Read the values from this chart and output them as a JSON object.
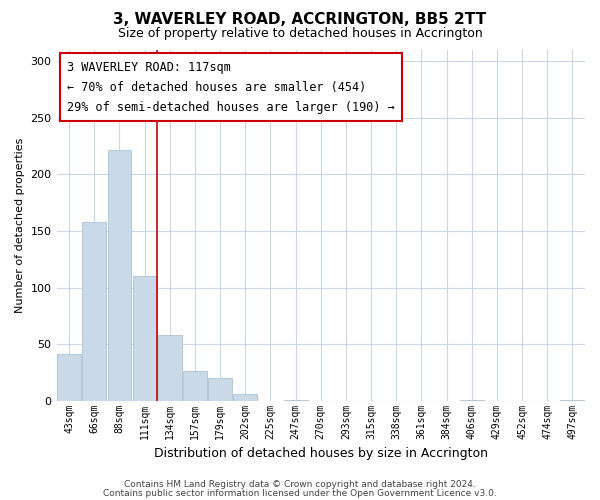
{
  "title": "3, WAVERLEY ROAD, ACCRINGTON, BB5 2TT",
  "subtitle": "Size of property relative to detached houses in Accrington",
  "xlabel": "Distribution of detached houses by size in Accrington",
  "ylabel": "Number of detached properties",
  "bar_color": "#c9d9e8",
  "bar_edge_color": "#a0bcd0",
  "highlight_line_color": "#cc0000",
  "background_color": "#ffffff",
  "grid_color": "#c8d8e8",
  "categories": [
    "43sqm",
    "66sqm",
    "88sqm",
    "111sqm",
    "134sqm",
    "157sqm",
    "179sqm",
    "202sqm",
    "225sqm",
    "247sqm",
    "270sqm",
    "293sqm",
    "315sqm",
    "338sqm",
    "361sqm",
    "384sqm",
    "406sqm",
    "429sqm",
    "452sqm",
    "474sqm",
    "497sqm"
  ],
  "values": [
    41,
    158,
    222,
    110,
    58,
    26,
    20,
    6,
    0,
    1,
    0,
    0,
    0,
    0,
    0,
    0,
    1,
    0,
    0,
    0,
    1
  ],
  "highlight_index": 3,
  "annotation_title": "3 WAVERLEY ROAD: 117sqm",
  "annotation_line1": "← 70% of detached houses are smaller (454)",
  "annotation_line2": "29% of semi-detached houses are larger (190) →",
  "footer_line1": "Contains HM Land Registry data © Crown copyright and database right 2024.",
  "footer_line2": "Contains public sector information licensed under the Open Government Licence v3.0.",
  "ylim": [
    0,
    310
  ],
  "yticks": [
    0,
    50,
    100,
    150,
    200,
    250,
    300
  ]
}
